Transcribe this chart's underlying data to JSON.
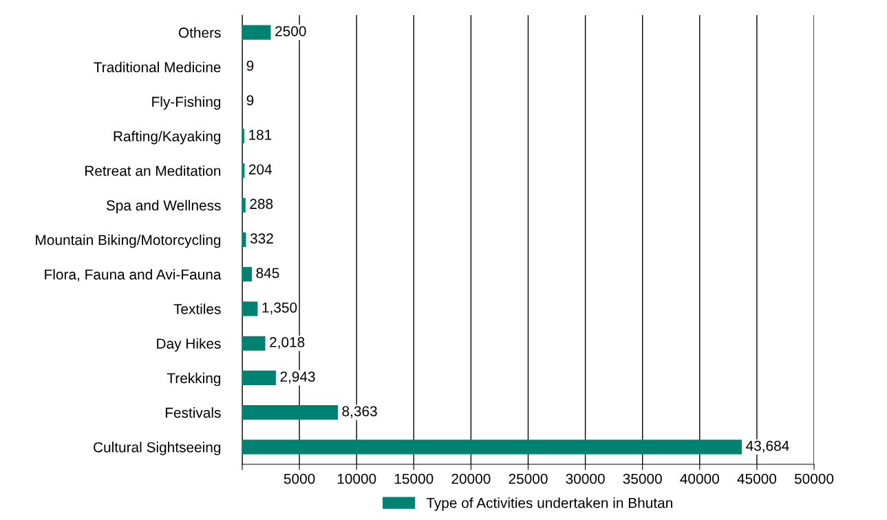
{
  "chart_data": {
    "type": "bar",
    "orientation": "horizontal",
    "categories": [
      "Others",
      "Traditional Medicine",
      "Fly-Fishing",
      "Rafting/Kayaking",
      "Retreat an Meditation",
      "Spa and Wellness",
      "Mountain Biking/Motorcycling",
      "Flora, Fauna and Avi-Fauna",
      "Textiles",
      "Day Hikes",
      "Trekking",
      "Festivals",
      "Cultural Sightseeing"
    ],
    "series": [
      {
        "name": "Type of Activities undertaken in Bhutan",
        "color": "#008272",
        "values": [
          2500,
          9,
          9,
          181,
          204,
          288,
          332,
          845,
          1350,
          2018,
          2943,
          8363,
          43684
        ],
        "value_labels": [
          "2500",
          "9",
          "9",
          "181",
          "204",
          "288",
          "332",
          "845",
          "1,350",
          "2,018",
          "2,943",
          "8,363",
          "43,684"
        ]
      }
    ],
    "xlim": [
      0,
      50000
    ],
    "xticks": [
      {
        "value": 0,
        "label": null
      },
      5000,
      10000,
      15000,
      20000,
      25000,
      30000,
      35000,
      40000,
      45000,
      50000
    ],
    "grid": "x",
    "legend": "bottom"
  }
}
